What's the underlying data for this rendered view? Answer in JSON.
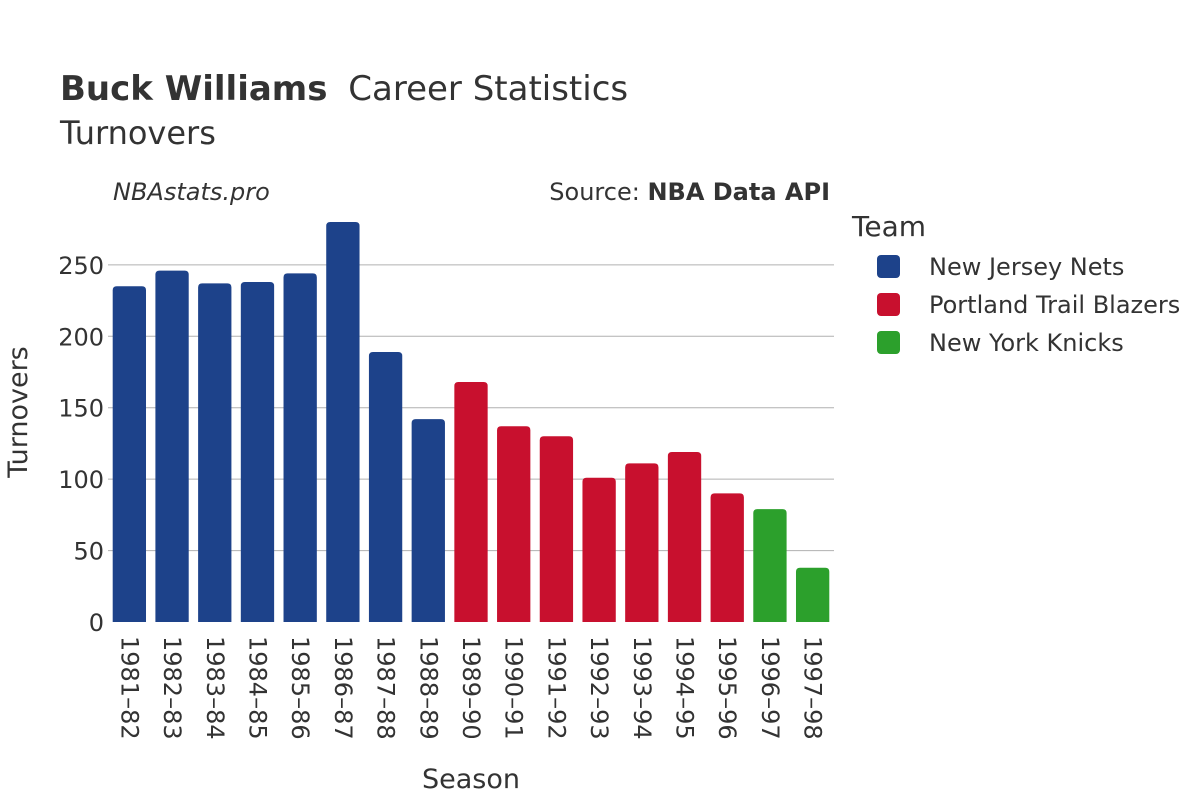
{
  "title": {
    "player": "Buck Williams",
    "rest": "Career Statistics",
    "subtitle": "Turnovers"
  },
  "watermark": "NBAstats.pro",
  "source": {
    "prefix": "Source: ",
    "name": "NBA Data API"
  },
  "legend": {
    "title": "Team",
    "items": [
      {
        "label": "New Jersey Nets",
        "color": "#1d428a"
      },
      {
        "label": "Portland Trail Blazers",
        "color": "#c8102e"
      },
      {
        "label": "New York Knicks",
        "color": "#2ca02c"
      }
    ]
  },
  "chart_data": {
    "type": "bar",
    "title": "Buck Williams Career Statistics",
    "subtitle": "Turnovers",
    "xlabel": "Season",
    "ylabel": "Turnovers",
    "ylim": [
      0,
      280
    ],
    "yticks": [
      0,
      50,
      100,
      150,
      200,
      250
    ],
    "grid": true,
    "legend_position": "right",
    "categories": [
      "1981–82",
      "1982–83",
      "1983–84",
      "1984–85",
      "1985–86",
      "1986–87",
      "1987–88",
      "1988–89",
      "1989–90",
      "1990–91",
      "1991–92",
      "1992–93",
      "1993–94",
      "1994–95",
      "1995–96",
      "1996–97",
      "1997–98"
    ],
    "values": [
      235,
      246,
      237,
      238,
      244,
      280,
      189,
      142,
      168,
      137,
      130,
      101,
      111,
      119,
      90,
      79,
      38
    ],
    "teams": [
      "New Jersey Nets",
      "New Jersey Nets",
      "New Jersey Nets",
      "New Jersey Nets",
      "New Jersey Nets",
      "New Jersey Nets",
      "New Jersey Nets",
      "New Jersey Nets",
      "Portland Trail Blazers",
      "Portland Trail Blazers",
      "Portland Trail Blazers",
      "Portland Trail Blazers",
      "Portland Trail Blazers",
      "Portland Trail Blazers",
      "Portland Trail Blazers",
      "New York Knicks",
      "New York Knicks"
    ]
  }
}
